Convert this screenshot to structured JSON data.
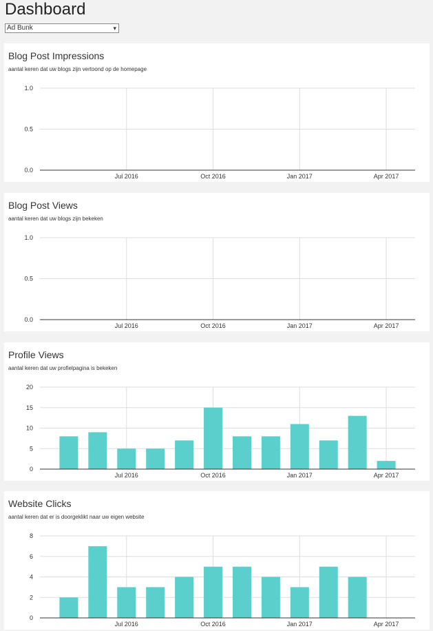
{
  "header": {
    "title": "Dashboard",
    "select": "Ad Bunk"
  },
  "chart_data": [
    {
      "type": "bar",
      "title": "Blog Post Impressions",
      "subtitle": "aantal keren dat uw blogs zijn vertoond op de homepage",
      "xlim": [
        "2016-04",
        "2017-05"
      ],
      "xticks": [
        {
          "value": "2016-07",
          "label": "Jul 2016"
        },
        {
          "value": "2016-10",
          "label": "Oct 2016"
        },
        {
          "value": "2017-01",
          "label": "Jan 2017"
        },
        {
          "value": "2017-04",
          "label": "Apr 2017"
        }
      ],
      "ylim": [
        0,
        1
      ],
      "yticks": [
        {
          "value": 0,
          "label": "0.0"
        },
        {
          "value": 0.5,
          "label": "0.5"
        },
        {
          "value": 1,
          "label": "1.0"
        }
      ],
      "grid": true
    },
    {
      "type": "bar",
      "title": "Blog Post Views",
      "subtitle": "aantal keren dat uw blogs zijn bekeken",
      "xlim": [
        "2016-04",
        "2017-05"
      ],
      "xticks": [
        {
          "value": "2016-07",
          "label": "Jul 2016"
        },
        {
          "value": "2016-10",
          "label": "Oct 2016"
        },
        {
          "value": "2017-01",
          "label": "Jan 2017"
        },
        {
          "value": "2017-04",
          "label": "Apr 2017"
        }
      ],
      "ylim": [
        0,
        1
      ],
      "yticks": [
        {
          "value": 0,
          "label": "0.0"
        },
        {
          "value": 0.5,
          "label": "0.5"
        },
        {
          "value": 1,
          "label": "1.0"
        }
      ],
      "grid": true
    },
    {
      "type": "bar",
      "title": "Profile Views",
      "subtitle": "aantal keren dat uw profielpagina is bekeken",
      "xlim": [
        "2016-04",
        "2017-05"
      ],
      "xticks": [
        {
          "value": "2016-07",
          "label": "Jul 2016"
        },
        {
          "value": "2016-10",
          "label": "Oct 2016"
        },
        {
          "value": "2017-01",
          "label": "Jan 2017"
        },
        {
          "value": "2017-04",
          "label": "Apr 2017"
        }
      ],
      "ylim": [
        0,
        20
      ],
      "yticks": [
        0,
        5,
        10,
        15,
        20
      ],
      "grid": true,
      "color": "#5bcfcb",
      "x": [
        "2016-05",
        "2016-06",
        "2016-07",
        "2016-08",
        "2016-09",
        "2016-10",
        "2016-11",
        "2016-12",
        "2017-01",
        "2017-02",
        "2017-03",
        "2017-04"
      ],
      "values": [
        8,
        9,
        5,
        5,
        7,
        15,
        8,
        8,
        11,
        7,
        13,
        2
      ]
    },
    {
      "type": "bar",
      "title": "Website Clicks",
      "subtitle": "aantal keren dat er is doorgeklikt naar uw eigen website",
      "xlim": [
        "2016-04",
        "2017-05"
      ],
      "xticks": [
        {
          "value": "2016-07",
          "label": "Jul 2016"
        },
        {
          "value": "2016-10",
          "label": "Oct 2016"
        },
        {
          "value": "2017-01",
          "label": "Jan 2017"
        },
        {
          "value": "2017-04",
          "label": "Apr 2017"
        }
      ],
      "ylim": [
        0,
        8
      ],
      "yticks": [
        0,
        2,
        4,
        6,
        8
      ],
      "grid": true,
      "color": "#5bcfcb",
      "x": [
        "2016-05",
        "2016-06",
        "2016-07",
        "2016-08",
        "2016-09",
        "2016-10",
        "2016-11",
        "2016-12",
        "2017-01",
        "2017-02",
        "2017-03",
        "2017-04"
      ],
      "values": [
        2,
        7,
        3,
        3,
        4,
        5,
        5,
        4,
        3,
        5,
        4,
        0
      ]
    }
  ]
}
